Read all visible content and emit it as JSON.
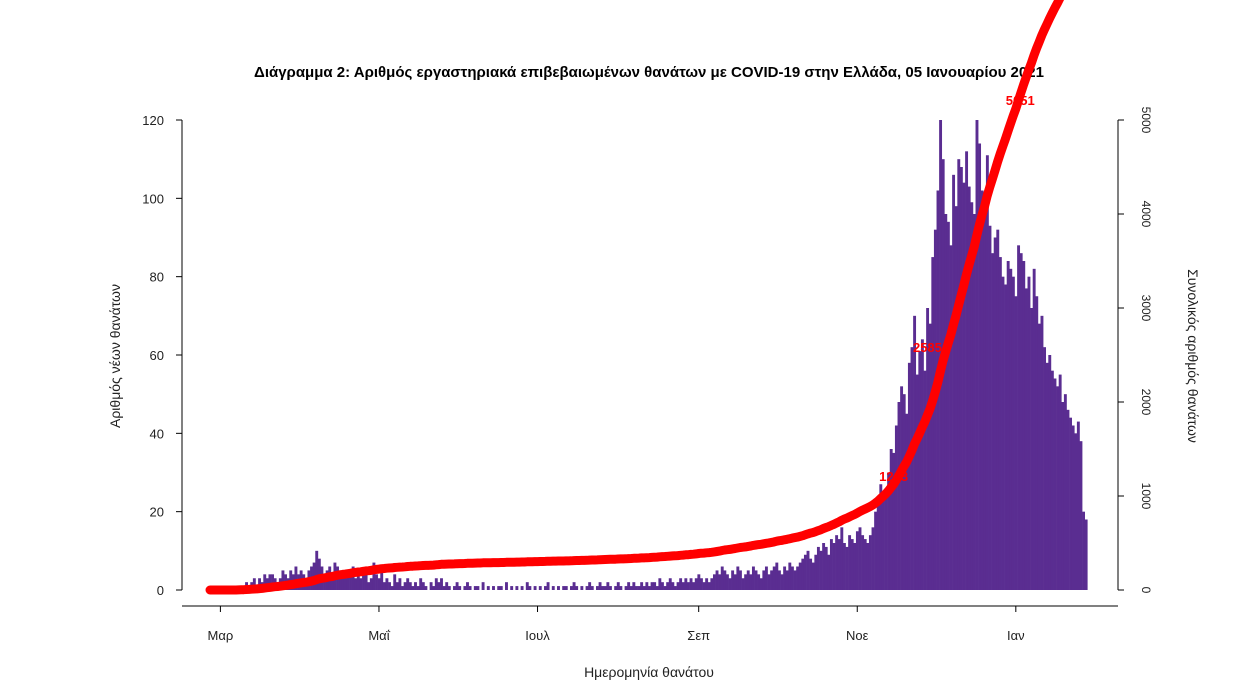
{
  "chart_data": {
    "type": "bar",
    "title": "Διάγραμμα 2: Αριθμός εργαστηριακά επιβεβαιωμένων θανάτων με COVID-19 στην Ελλάδα, 05 Ιανουαρίου 2021",
    "xlabel": "Ημερομηνία θανάτου",
    "ylabel_left": "Αριθμός νέων θανάτων",
    "ylabel_right": "Συνολικός αριθμός θανάτων",
    "x_tick_labels": [
      "Μαρ",
      "Μαΐ",
      "Ιουλ",
      "Σεπ",
      "Νοε",
      "Ιαν"
    ],
    "y_left_ticks": [
      0,
      20,
      40,
      60,
      80,
      100,
      120
    ],
    "y_right_ticks": [
      0,
      1000,
      2000,
      3000,
      4000,
      5000
    ],
    "ylim_left": [
      0,
      120
    ],
    "ylim_right": [
      0,
      5000
    ],
    "start_date": "2020-02-26",
    "daily_deaths": [
      0,
      0,
      0,
      0,
      0,
      0,
      0,
      0,
      0,
      0,
      0,
      1,
      1,
      1,
      2,
      1,
      2,
      3,
      1,
      3,
      2,
      4,
      3,
      4,
      4,
      3,
      2,
      3,
      5,
      4,
      3,
      5,
      4,
      6,
      4,
      5,
      4,
      3,
      5,
      6,
      7,
      10,
      8,
      6,
      4,
      5,
      6,
      4,
      7,
      6,
      5,
      4,
      3,
      4,
      5,
      6,
      3,
      4,
      3,
      5,
      4,
      2,
      3,
      7,
      4,
      3,
      5,
      2,
      3,
      2,
      1,
      4,
      2,
      3,
      1,
      2,
      3,
      2,
      1,
      2,
      1,
      3,
      2,
      1,
      0,
      2,
      1,
      3,
      2,
      3,
      1,
      2,
      1,
      0,
      1,
      2,
      1,
      0,
      1,
      2,
      1,
      0,
      1,
      1,
      0,
      2,
      0,
      1,
      0,
      1,
      0,
      1,
      1,
      0,
      2,
      0,
      1,
      0,
      1,
      0,
      1,
      0,
      2,
      1,
      0,
      1,
      0,
      1,
      0,
      1,
      2,
      0,
      1,
      0,
      1,
      0,
      1,
      1,
      0,
      1,
      2,
      1,
      0,
      1,
      0,
      1,
      2,
      1,
      0,
      1,
      2,
      1,
      1,
      2,
      1,
      0,
      1,
      2,
      1,
      0,
      1,
      2,
      1,
      2,
      1,
      1,
      2,
      1,
      2,
      1,
      2,
      2,
      1,
      3,
      2,
      1,
      2,
      3,
      2,
      1,
      2,
      3,
      2,
      3,
      2,
      3,
      2,
      3,
      4,
      3,
      2,
      3,
      2,
      3,
      4,
      5,
      4,
      6,
      5,
      4,
      3,
      5,
      4,
      6,
      5,
      3,
      4,
      5,
      4,
      6,
      5,
      4,
      3,
      5,
      6,
      4,
      5,
      6,
      7,
      5,
      4,
      6,
      5,
      7,
      6,
      5,
      6,
      7,
      8,
      9,
      10,
      8,
      7,
      9,
      11,
      10,
      12,
      11,
      9,
      13,
      12,
      14,
      13,
      16,
      12,
      11,
      14,
      13,
      12,
      15,
      16,
      14,
      13,
      12,
      14,
      16,
      20,
      22,
      27,
      25,
      26,
      30,
      36,
      35,
      42,
      48,
      52,
      50,
      45,
      58,
      62,
      70,
      55,
      61,
      64,
      56,
      72,
      68,
      85,
      92,
      102,
      120,
      110,
      96,
      94,
      88,
      106,
      98,
      110,
      108,
      104,
      112,
      103,
      99,
      96,
      120,
      114,
      102,
      96,
      111,
      93,
      86,
      90,
      92,
      85,
      80,
      78,
      84,
      82,
      80,
      75,
      88,
      86,
      84,
      77,
      80,
      72,
      82,
      75,
      68,
      70,
      62,
      58,
      60,
      56,
      54,
      52,
      55,
      48,
      50,
      46,
      44,
      42,
      40,
      43,
      38,
      20,
      18
    ],
    "annotations": [
      {
        "label": "1213",
        "date": "2020-11-15",
        "cumulative": 1213
      },
      {
        "label": "2585",
        "date": "2020-11-28",
        "cumulative": 2585
      },
      {
        "label": "5051",
        "date": "2021-01-05",
        "cumulative": 5051
      }
    ],
    "series": [
      {
        "name": "Αριθμός νέων θανάτων",
        "kind": "bar",
        "color": "#5a2d91"
      },
      {
        "name": "Συνολικός αριθμός θανάτων",
        "kind": "cumulative-line",
        "color": "#ff0000"
      }
    ],
    "grid": false,
    "legend": "none"
  }
}
